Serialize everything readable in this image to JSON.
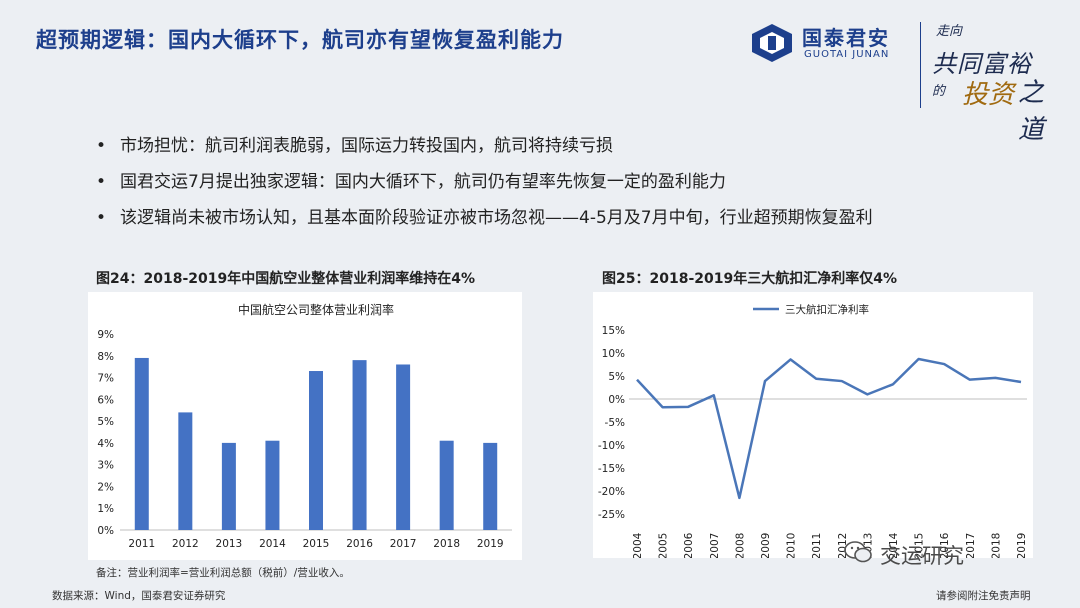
{
  "header": {
    "title": "超预期逻辑：国内大循环下，航司亦有望恢复盈利能力",
    "logo_cn": "国泰君安",
    "logo_en": "GUOTAI JUNAN",
    "slogan": [
      "走向",
      "共同富裕",
      "的",
      "投资",
      "之道"
    ]
  },
  "bullets": [
    "市场担忧：航司利润表脆弱，国际运力转投国内，航司将持续亏损",
    "国君交运7月提出独家逻辑：国内大循环下，航司仍有望率先恢复一定的盈利能力",
    "该逻辑尚未被市场认知，且基本面阶段验证亦被市场忽视——4-5月及7月中旬，行业超预期恢复盈利"
  ],
  "figure24": {
    "caption": "图24：2018-2019年中国航空业整体营业利润率维持在4%",
    "note": "备注：营业利润率=营业利润总额（税前）/营业收入。"
  },
  "figure25": {
    "caption": "图25：2018-2019年三大航扣汇净利率仅4%"
  },
  "footer": {
    "source": "数据来源：Wind，国泰君安证券研究",
    "disclaimer": "请参阅附注免责声明",
    "watermark": "交运研究"
  },
  "colors": {
    "brand": "#1d3f8c",
    "bar": "#4472c4",
    "line": "#4a76b8"
  },
  "chart_data": [
    {
      "type": "bar",
      "title": "中国航空公司整体营业利润率",
      "categories": [
        "2011",
        "2012",
        "2013",
        "2014",
        "2015",
        "2016",
        "2017",
        "2018",
        "2019"
      ],
      "values": [
        7.9,
        5.4,
        4.0,
        4.1,
        7.3,
        7.8,
        7.6,
        4.1,
        4.0
      ],
      "ylim": [
        0,
        9
      ],
      "yticks": [
        "0%",
        "1%",
        "2%",
        "3%",
        "4%",
        "5%",
        "6%",
        "7%",
        "8%",
        "9%"
      ],
      "grid": false
    },
    {
      "type": "line",
      "x": [
        "2004",
        "2005",
        "2006",
        "2007",
        "2008",
        "2009",
        "2010",
        "2011",
        "2012",
        "2013",
        "2014",
        "2015",
        "2016",
        "2017",
        "2018",
        "2019"
      ],
      "series": [
        {
          "name": "三大航扣汇净利率",
          "values": [
            4.2,
            -1.8,
            -1.7,
            0.8,
            -21.5,
            3.9,
            8.6,
            4.4,
            3.9,
            1.0,
            3.2,
            8.7,
            7.6,
            4.2,
            4.6,
            3.7
          ]
        }
      ],
      "ylim": [
        -25,
        15
      ],
      "yticks": [
        "15%",
        "10%",
        "5%",
        "0%",
        "-5%",
        "-10%",
        "-15%",
        "-20%",
        "-25%"
      ],
      "legend": "top",
      "grid": false
    }
  ]
}
